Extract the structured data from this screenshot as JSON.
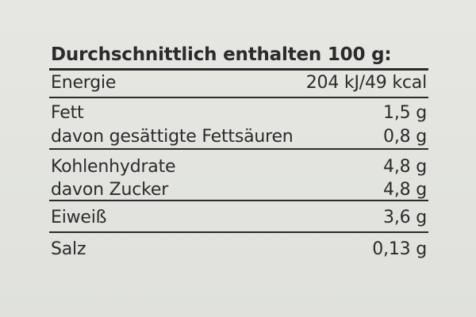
{
  "table": {
    "title": "Durchschnittlich enthalten 100 g:",
    "groups": [
      [
        [
          "Energie",
          "204 kJ/49 kcal"
        ]
      ],
      [
        [
          "Fett",
          "1,5 g"
        ],
        [
          "davon gesättigte Fettsäuren",
          "0,8 g"
        ]
      ],
      [
        [
          "Kohlenhydrate",
          "4,8 g"
        ],
        [
          "davon Zucker",
          "4,8 g"
        ]
      ],
      [
        [
          "Eiweiß",
          "3,6 g"
        ]
      ],
      [
        [
          "Salz",
          "0,13 g"
        ]
      ]
    ]
  }
}
